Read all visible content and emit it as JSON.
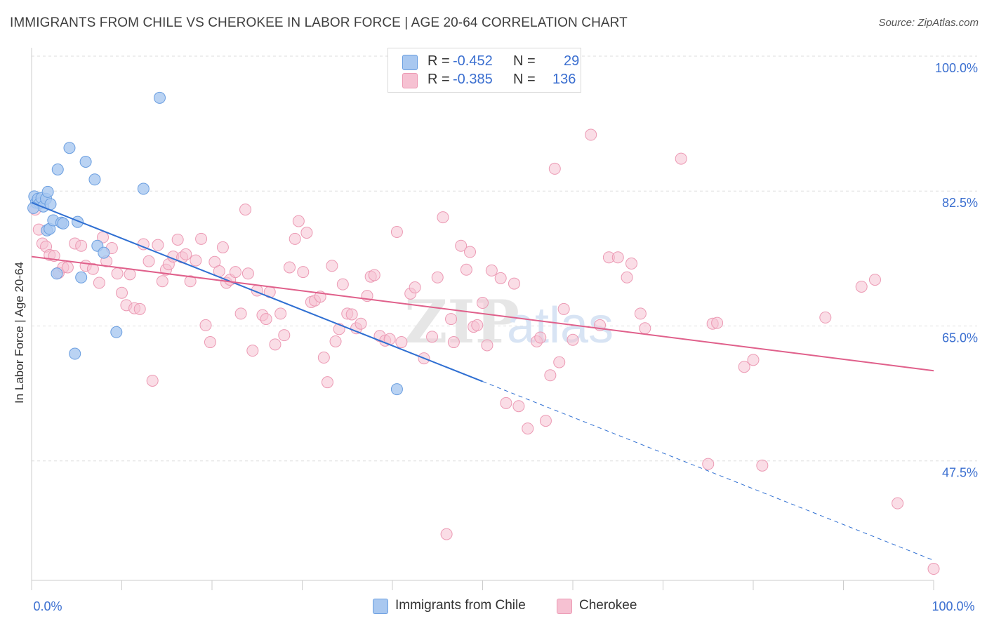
{
  "title": "IMMIGRANTS FROM CHILE VS CHEROKEE IN LABOR FORCE | AGE 20-64 CORRELATION CHART",
  "source": "Source: ZipAtlas.com",
  "watermark": "ZIPatlas",
  "colors": {
    "blue_fill": "#a9c8f0",
    "blue_stroke": "#6a9ee0",
    "blue_line": "#2f6fd2",
    "pink_fill": "#f6c1d2",
    "pink_stroke": "#ec9ab4",
    "pink_line": "#e0608b",
    "axis_text": "#3b6fd0",
    "grid": "#dddddd"
  },
  "legend": {
    "series": [
      {
        "r_label": "R =",
        "r_value": "-0.452",
        "n_label": "N =",
        "n_value": "29"
      },
      {
        "r_label": "R =",
        "r_value": "-0.385",
        "n_label": "N =",
        "n_value": "136"
      }
    ]
  },
  "bottom_legend": [
    "Immigrants from Chile",
    "Cherokee"
  ],
  "chart_data": {
    "type": "scatter",
    "xlabel": "",
    "ylabel": "In Labor Force | Age 20-64",
    "xlim": [
      0,
      100
    ],
    "ylim": [
      32,
      100
    ],
    "x_tick_labels": [
      "0.0%",
      "100.0%"
    ],
    "y_ticks": [
      47.5,
      65.0,
      82.5,
      100.0
    ],
    "y_tick_labels": [
      "47.5%",
      "65.0%",
      "82.5%",
      "100.0%"
    ],
    "grid": true,
    "series": [
      {
        "name": "Immigrants from Chile",
        "color": "#a9c8f0",
        "trend": {
          "x0": 0,
          "y0": 81.0,
          "x1": 50,
          "y1": 57.8,
          "dashed_to_x": 100,
          "dashed_to_y": 34.6
        },
        "points": [
          [
            0.3,
            81.8
          ],
          [
            0.5,
            81.0
          ],
          [
            0.7,
            81.5
          ],
          [
            0.9,
            80.9
          ],
          [
            1.1,
            81.6
          ],
          [
            1.3,
            80.5
          ],
          [
            1.6,
            81.5
          ],
          [
            1.8,
            82.4
          ],
          [
            2.1,
            80.8
          ],
          [
            1.7,
            77.4
          ],
          [
            2.0,
            77.6
          ],
          [
            2.4,
            78.7
          ],
          [
            3.3,
            78.4
          ],
          [
            3.5,
            78.3
          ],
          [
            5.1,
            78.5
          ],
          [
            2.9,
            85.3
          ],
          [
            4.2,
            88.1
          ],
          [
            6.0,
            86.3
          ],
          [
            7.0,
            84.0
          ],
          [
            12.4,
            82.8
          ],
          [
            14.2,
            94.6
          ],
          [
            7.3,
            75.4
          ],
          [
            8.0,
            74.5
          ],
          [
            2.8,
            71.8
          ],
          [
            5.5,
            71.3
          ],
          [
            9.4,
            64.2
          ],
          [
            4.8,
            61.4
          ],
          [
            40.5,
            56.8
          ],
          [
            0.2,
            80.3
          ]
        ]
      },
      {
        "name": "Cherokee",
        "color": "#f6c1d2",
        "trend": {
          "x0": 0,
          "y0": 74.0,
          "x1": 100,
          "y1": 59.2
        },
        "points": [
          [
            0.4,
            80.1
          ],
          [
            0.8,
            77.5
          ],
          [
            1.2,
            75.7
          ],
          [
            1.6,
            75.3
          ],
          [
            2.0,
            74.2
          ],
          [
            2.5,
            74.1
          ],
          [
            3.0,
            71.9
          ],
          [
            3.5,
            72.6
          ],
          [
            4.0,
            72.6
          ],
          [
            4.8,
            75.7
          ],
          [
            5.5,
            75.4
          ],
          [
            6.0,
            72.8
          ],
          [
            6.8,
            72.4
          ],
          [
            7.5,
            70.6
          ],
          [
            7.9,
            76.5
          ],
          [
            8.3,
            73.4
          ],
          [
            8.9,
            75.1
          ],
          [
            9.5,
            71.8
          ],
          [
            10.0,
            69.3
          ],
          [
            10.5,
            67.7
          ],
          [
            10.9,
            71.7
          ],
          [
            11.4,
            67.3
          ],
          [
            12.0,
            67.2
          ],
          [
            12.4,
            75.6
          ],
          [
            13.0,
            73.4
          ],
          [
            13.4,
            57.9
          ],
          [
            14.0,
            75.5
          ],
          [
            14.5,
            70.8
          ],
          [
            14.9,
            72.3
          ],
          [
            15.2,
            73.0
          ],
          [
            15.7,
            74.0
          ],
          [
            16.2,
            76.2
          ],
          [
            16.7,
            73.9
          ],
          [
            17.1,
            74.3
          ],
          [
            17.6,
            70.8
          ],
          [
            18.2,
            73.5
          ],
          [
            18.8,
            76.3
          ],
          [
            19.3,
            65.1
          ],
          [
            19.8,
            62.9
          ],
          [
            20.3,
            73.3
          ],
          [
            20.8,
            72.1
          ],
          [
            21.2,
            75.2
          ],
          [
            21.6,
            70.6
          ],
          [
            22.0,
            71.0
          ],
          [
            22.6,
            72.0
          ],
          [
            23.2,
            66.6
          ],
          [
            23.7,
            80.1
          ],
          [
            24.0,
            71.8
          ],
          [
            24.5,
            61.8
          ],
          [
            25.0,
            69.6
          ],
          [
            25.6,
            66.4
          ],
          [
            26.0,
            65.9
          ],
          [
            26.4,
            69.4
          ],
          [
            27.0,
            62.6
          ],
          [
            27.6,
            66.6
          ],
          [
            28.0,
            63.8
          ],
          [
            28.6,
            72.6
          ],
          [
            29.2,
            76.3
          ],
          [
            29.6,
            78.6
          ],
          [
            30.1,
            72.0
          ],
          [
            30.5,
            77.1
          ],
          [
            31.0,
            68.1
          ],
          [
            31.4,
            68.3
          ],
          [
            32.0,
            68.8
          ],
          [
            32.4,
            60.9
          ],
          [
            32.8,
            57.7
          ],
          [
            33.3,
            72.8
          ],
          [
            33.7,
            63.0
          ],
          [
            34.1,
            64.6
          ],
          [
            34.5,
            70.4
          ],
          [
            35.0,
            66.6
          ],
          [
            35.5,
            66.5
          ],
          [
            36.0,
            64.7
          ],
          [
            36.5,
            65.3
          ],
          [
            37.2,
            68.9
          ],
          [
            37.6,
            71.4
          ],
          [
            38.0,
            71.6
          ],
          [
            38.6,
            63.7
          ],
          [
            39.2,
            63.1
          ],
          [
            39.7,
            63.3
          ],
          [
            40.5,
            77.2
          ],
          [
            41.0,
            62.9
          ],
          [
            42.0,
            69.2
          ],
          [
            42.5,
            70.0
          ],
          [
            43.5,
            60.8
          ],
          [
            44.0,
            100.0
          ],
          [
            44.4,
            63.6
          ],
          [
            45.0,
            71.3
          ],
          [
            45.6,
            79.1
          ],
          [
            46.5,
            65.9
          ],
          [
            46.8,
            62.9
          ],
          [
            47.6,
            75.4
          ],
          [
            48.2,
            72.3
          ],
          [
            48.6,
            74.6
          ],
          [
            49.0,
            64.9
          ],
          [
            49.4,
            65.1
          ],
          [
            50.0,
            68.0
          ],
          [
            50.5,
            62.5
          ],
          [
            51.0,
            72.2
          ],
          [
            52.0,
            71.2
          ],
          [
            52.6,
            55.0
          ],
          [
            53.5,
            70.5
          ],
          [
            54.0,
            54.6
          ],
          [
            55.0,
            51.7
          ],
          [
            56.0,
            63.0
          ],
          [
            56.4,
            63.5
          ],
          [
            57.0,
            52.7
          ],
          [
            57.5,
            58.6
          ],
          [
            58.0,
            85.4
          ],
          [
            59.0,
            67.2
          ],
          [
            60.0,
            63.2
          ],
          [
            62.0,
            89.8
          ],
          [
            63.0,
            65.1
          ],
          [
            64.0,
            73.9
          ],
          [
            65.0,
            73.9
          ],
          [
            66.0,
            71.3
          ],
          [
            66.5,
            73.1
          ],
          [
            67.5,
            66.6
          ],
          [
            68.0,
            64.7
          ],
          [
            72.0,
            86.7
          ],
          [
            75.0,
            47.1
          ],
          [
            75.5,
            65.3
          ],
          [
            76.0,
            65.4
          ],
          [
            79.0,
            59.7
          ],
          [
            80.0,
            60.6
          ],
          [
            81.0,
            46.9
          ],
          [
            88.0,
            66.1
          ],
          [
            92.0,
            70.1
          ],
          [
            93.5,
            71.0
          ],
          [
            96.0,
            42.0
          ],
          [
            100.0,
            33.5
          ],
          [
            46.0,
            38.0
          ],
          [
            58.5,
            60.3
          ]
        ]
      }
    ]
  }
}
